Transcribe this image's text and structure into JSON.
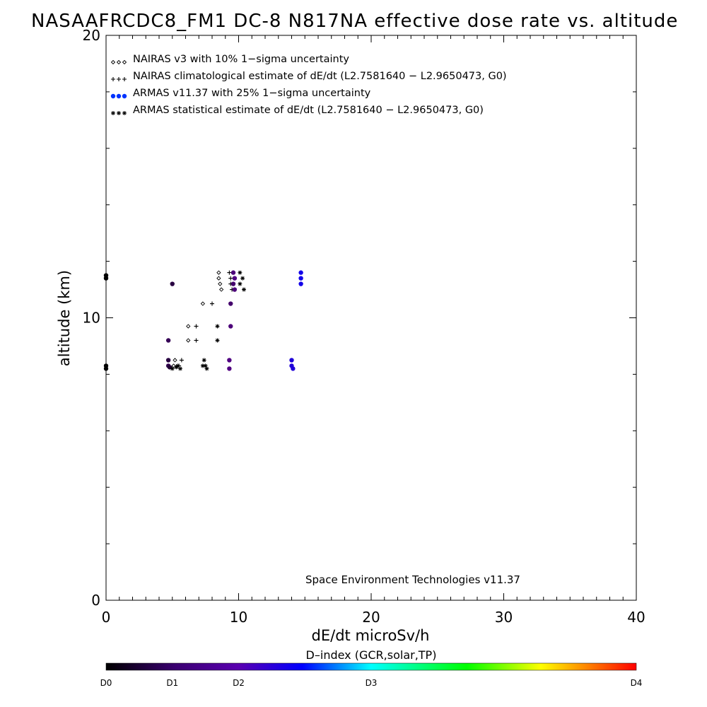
{
  "chart_data": {
    "type": "scatter",
    "title": "NASAAFRCDC8_FM1 DC-8   N817NA effective dose rate vs. altitude",
    "xlabel": "dE/dt microSv/h",
    "ylabel": "altitude (km)",
    "xlim": [
      0,
      40
    ],
    "ylim": [
      0,
      20
    ],
    "x_major_ticks": [
      0,
      10,
      20,
      30,
      40
    ],
    "y_major_ticks": [
      0,
      10,
      20
    ],
    "x_minor_step": 1,
    "y_minor_step": 2,
    "grid": false,
    "legend_position": "top-left",
    "credit": "Space Environment Technologies v11.37",
    "colorbar": {
      "title": "D–index (GCR,solar,TP)",
      "labels": [
        {
          "text": "D0",
          "value": 0
        },
        {
          "text": "D1",
          "value": 0.25
        },
        {
          "text": "D2",
          "value": 0.5
        },
        {
          "text": "D3",
          "value": 1.0
        },
        {
          "text": "D4",
          "value": 2.0
        }
      ],
      "colors": [
        "#000000",
        "#5a0090",
        "#0000ff",
        "#00ffff",
        "#00ff00",
        "#ffff00",
        "#ff0000"
      ]
    },
    "series": [
      {
        "name": "NAIRAS v3 with 10% 1−sigma uncertainty",
        "marker": "diamond",
        "legend_symbol": "◇◇◇",
        "color": "#000000",
        "points": [
          [
            8.5,
            11.6
          ],
          [
            8.5,
            11.4
          ],
          [
            8.6,
            11.2
          ],
          [
            8.7,
            11.0
          ],
          [
            7.3,
            10.5
          ],
          [
            6.2,
            9.7
          ],
          [
            6.2,
            9.2
          ],
          [
            5.2,
            8.5
          ],
          [
            5.1,
            8.3
          ]
        ]
      },
      {
        "name": "NAIRAS climatological estimate of dE/dt (L2.7581640 − L2.9650473, G0)",
        "marker": "plus",
        "legend_symbol": "+++",
        "color": "#000000",
        "points": [
          [
            9.3,
            11.6
          ],
          [
            9.4,
            11.4
          ],
          [
            9.4,
            11.2
          ],
          [
            9.5,
            11.0
          ],
          [
            8.0,
            10.5
          ],
          [
            6.8,
            9.7
          ],
          [
            6.8,
            9.2
          ],
          [
            5.7,
            8.5
          ],
          [
            5.5,
            8.3
          ]
        ]
      },
      {
        "name": "ARMAS v11.37 with 25% 1−sigma uncertainty",
        "marker": "filled-circle",
        "legend_symbol": "●●●",
        "color": "#0000ff",
        "points": [
          [
            0.0,
            11.4,
            0.0
          ],
          [
            0.0,
            11.5,
            0.0
          ],
          [
            5.0,
            11.2,
            0.15
          ],
          [
            9.6,
            11.6,
            0.28
          ],
          [
            9.7,
            11.4,
            0.3
          ],
          [
            9.6,
            11.2,
            0.25
          ],
          [
            9.7,
            11.0,
            0.28
          ],
          [
            9.4,
            10.5,
            0.25
          ],
          [
            9.4,
            9.7,
            0.28
          ],
          [
            4.7,
            9.2,
            0.2
          ],
          [
            4.7,
            8.5,
            0.15
          ],
          [
            4.7,
            8.3,
            0.18
          ],
          [
            4.8,
            8.25,
            0.12
          ],
          [
            9.3,
            8.5,
            0.3
          ],
          [
            9.3,
            8.2,
            0.3
          ],
          [
            14.0,
            8.5,
            0.55
          ],
          [
            14.0,
            8.3,
            0.55
          ],
          [
            14.1,
            8.2,
            0.55
          ],
          [
            14.7,
            11.6,
            0.6
          ],
          [
            14.7,
            11.4,
            0.6
          ],
          [
            14.7,
            11.2,
            0.6
          ],
          [
            0.0,
            8.3,
            0.0
          ],
          [
            0.0,
            8.2,
            0.0
          ]
        ]
      },
      {
        "name": "ARMAS statistical estimate of dE/dt (L2.7581640 − L2.9650473, G0)",
        "marker": "asterisk",
        "legend_symbol": "✳✳✳",
        "color": "#000000",
        "points": [
          [
            10.1,
            11.6
          ],
          [
            10.3,
            11.4
          ],
          [
            10.1,
            11.2
          ],
          [
            10.4,
            11.0
          ],
          [
            8.4,
            9.7
          ],
          [
            8.4,
            9.2
          ],
          [
            7.4,
            8.5
          ],
          [
            7.5,
            8.3
          ],
          [
            7.6,
            8.2
          ],
          [
            7.3,
            8.3
          ],
          [
            5.4,
            8.3
          ],
          [
            5.6,
            8.2
          ],
          [
            5.3,
            8.25
          ],
          [
            5.0,
            8.2
          ]
        ]
      }
    ]
  }
}
